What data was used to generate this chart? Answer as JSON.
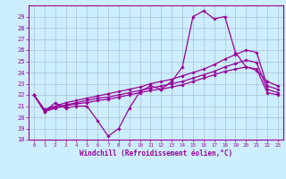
{
  "xlabel": "Windchill (Refroidissement éolien,°C)",
  "x": [
    0,
    1,
    2,
    3,
    4,
    5,
    6,
    7,
    8,
    9,
    10,
    11,
    12,
    13,
    14,
    15,
    16,
    17,
    18,
    19,
    20,
    21,
    22,
    23
  ],
  "line_wiggly": [
    22.0,
    20.5,
    21.3,
    20.8,
    21.0,
    21.0,
    19.7,
    18.3,
    19.0,
    20.8,
    22.3,
    22.8,
    22.5,
    23.2,
    24.5,
    29.0,
    29.5,
    28.8,
    29.0,
    25.8,
    24.5,
    24.2,
    23.2,
    22.8
  ],
  "line_upper": [
    22.0,
    20.7,
    21.0,
    21.3,
    21.5,
    21.7,
    21.9,
    22.1,
    22.3,
    22.5,
    22.7,
    23.0,
    23.2,
    23.4,
    23.7,
    24.0,
    24.3,
    24.7,
    25.2,
    25.6,
    26.0,
    25.8,
    22.8,
    22.5
  ],
  "line_mid": [
    22.0,
    20.6,
    20.9,
    21.1,
    21.3,
    21.5,
    21.7,
    21.8,
    22.0,
    22.2,
    22.4,
    22.6,
    22.8,
    23.0,
    23.2,
    23.5,
    23.8,
    24.1,
    24.5,
    24.8,
    25.1,
    24.9,
    22.5,
    22.2
  ],
  "line_lower": [
    22.0,
    20.5,
    20.8,
    21.0,
    21.2,
    21.3,
    21.5,
    21.6,
    21.8,
    22.0,
    22.2,
    22.4,
    22.5,
    22.7,
    22.9,
    23.2,
    23.5,
    23.8,
    24.1,
    24.3,
    24.5,
    24.3,
    22.2,
    22.0
  ],
  "line_color": "#990099",
  "bg_color": "#cceeff",
  "grid_color": "#aabbcc",
  "ylim": [
    18,
    30
  ],
  "xlim": [
    -0.5,
    23.5
  ],
  "yticks": [
    18,
    19,
    20,
    21,
    22,
    23,
    24,
    25,
    26,
    27,
    28,
    29
  ],
  "xticks": [
    0,
    1,
    2,
    3,
    4,
    5,
    6,
    7,
    8,
    9,
    10,
    11,
    12,
    13,
    14,
    15,
    16,
    17,
    18,
    19,
    20,
    21,
    22,
    23
  ]
}
